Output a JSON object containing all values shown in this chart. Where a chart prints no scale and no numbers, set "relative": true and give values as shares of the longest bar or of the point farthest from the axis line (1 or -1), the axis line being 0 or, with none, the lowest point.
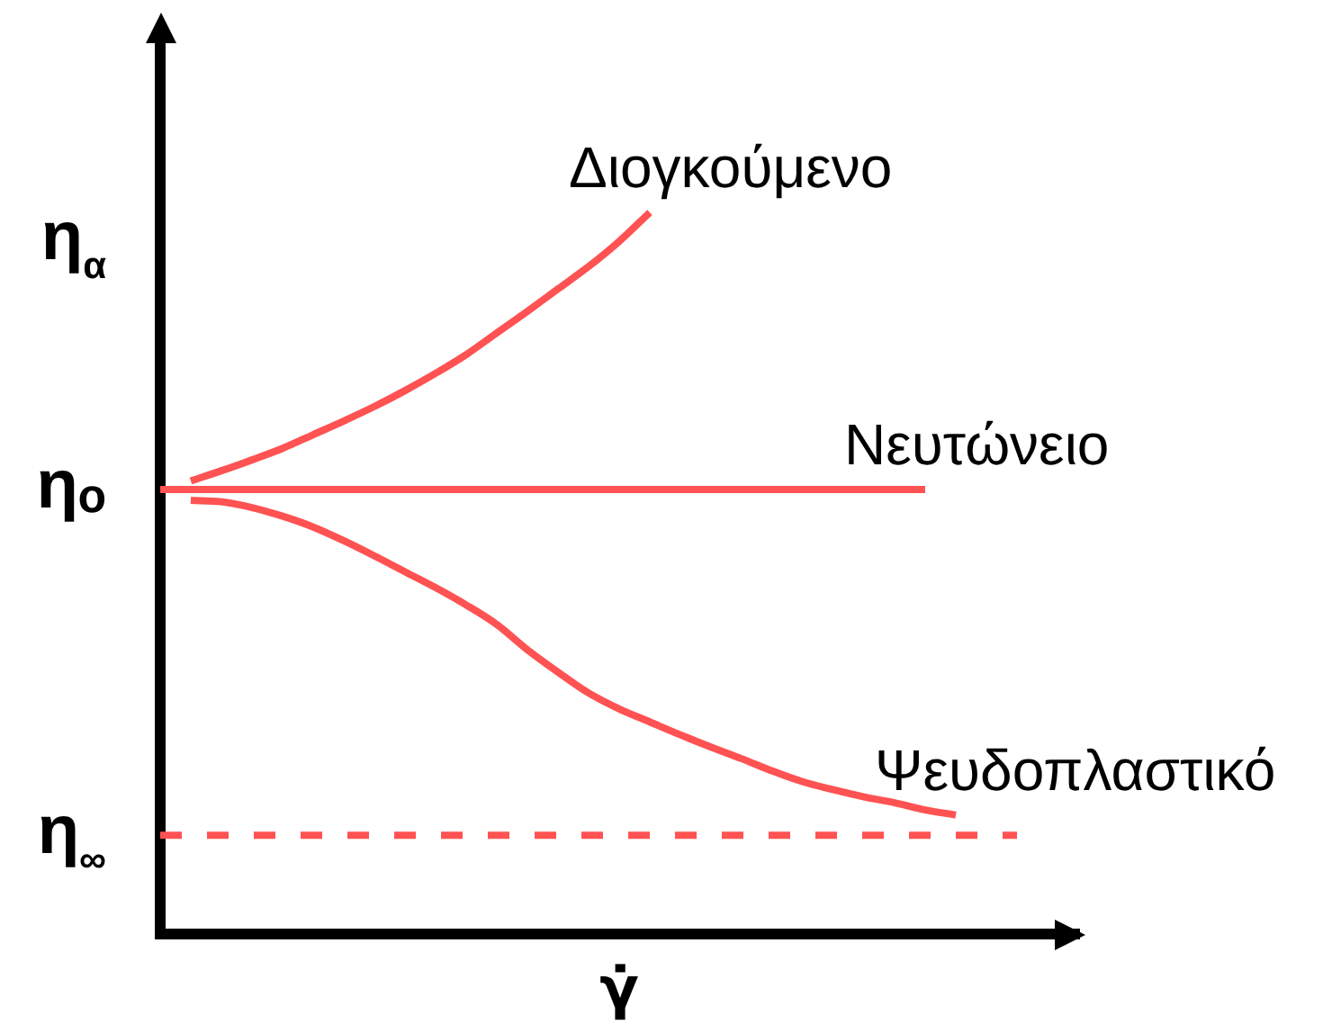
{
  "chart_data": {
    "type": "line",
    "relative": true,
    "xlabel": "γ̇",
    "legend": false,
    "grid": false,
    "marker": "none",
    "categories": [
      null,
      null,
      null,
      null,
      null,
      null,
      null,
      null,
      null,
      null,
      null,
      null,
      null,
      null,
      null,
      null,
      null,
      null,
      null,
      null,
      null,
      null,
      null,
      null,
      null,
      null,
      null,
      null,
      null,
      null,
      null
    ],
    "annotations": [
      "η$_{α}$",
      "ηₒ",
      "η$_{∞}$"
    ],
    "series": [
      {
        "name": "Διογκούμενο",
        "color": "#ff5252",
        "values": [
          null,
          0.628,
          0.642,
          0.657,
          0.673,
          0.692,
          0.711,
          0.731,
          0.753,
          0.777,
          0.803,
          0.833,
          0.863,
          0.894,
          0.925,
          0.96,
          1,
          null,
          null,
          null,
          null,
          null,
          null,
          null,
          null,
          null,
          null,
          null,
          null,
          null,
          null
        ]
      },
      {
        "name": "Νευτώνειο",
        "color": "#ff5252",
        "values": [
          0.616,
          0.616,
          0.616,
          0.616,
          0.616,
          0.616,
          0.616,
          0.616,
          0.616,
          0.616,
          0.616,
          0.616,
          0.616,
          0.616,
          0.616,
          0.616,
          0.616,
          0.616,
          0.616,
          0.616,
          0.616,
          0.616,
          0.616,
          0.616,
          0.616,
          0.616,
          null,
          null,
          null,
          null,
          null
        ]
      },
      {
        "name": "Ψευδοπλαστικό",
        "color": "#ff5252",
        "values": [
          null,
          0.601,
          0.599,
          0.591,
          0.579,
          0.564,
          0.545,
          0.524,
          0.502,
          0.48,
          0.456,
          0.429,
          0.394,
          0.363,
          0.334,
          0.312,
          0.294,
          0.276,
          0.259,
          0.243,
          0.226,
          0.211,
          0.2,
          0.19,
          0.182,
          0.172,
          0.165,
          null,
          null,
          null,
          null
        ]
      },
      {
        "color": "#ff5252",
        "line_style": "dashed",
        "values": [
          0.137,
          0.137,
          0.137,
          0.137,
          0.137,
          0.137,
          0.137,
          0.137,
          0.137,
          0.137,
          0.137,
          0.137,
          0.137,
          0.137,
          0.137,
          0.137,
          0.137,
          0.137,
          0.137,
          0.137,
          0.137,
          0.137,
          0.137,
          0.137,
          0.137,
          0.137,
          0.137,
          0.137,
          0.137,
          null,
          null
        ]
      }
    ]
  }
}
